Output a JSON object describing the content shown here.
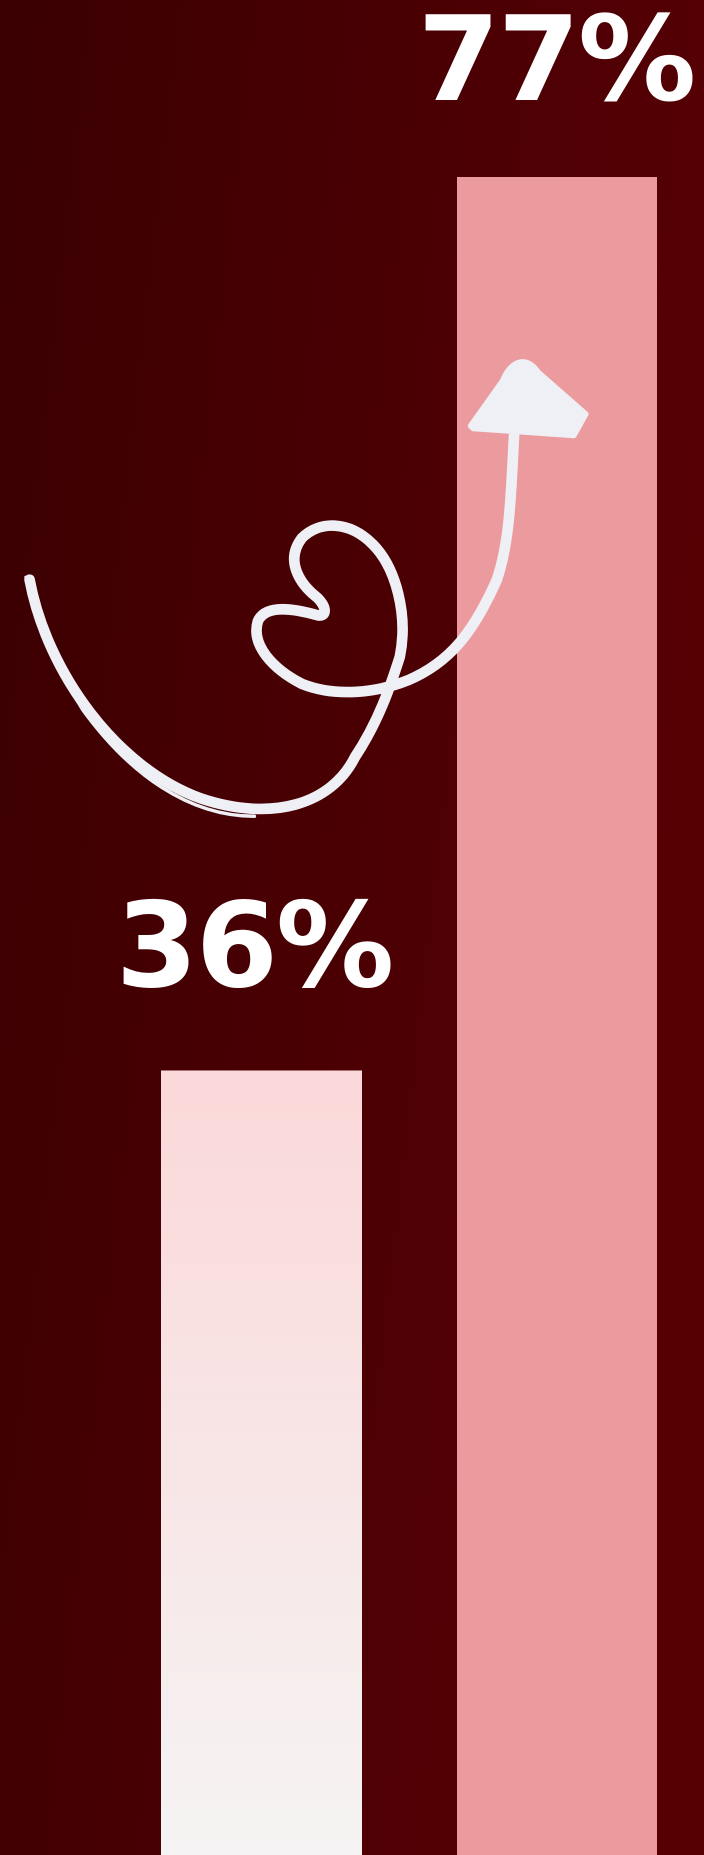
{
  "chart_data": {
    "type": "bar",
    "values": [
      36,
      77
    ],
    "value_labels": [
      "36%",
      "77%"
    ],
    "colors": [
      "#fbd8d9",
      "#eb9b9d"
    ]
  }
}
